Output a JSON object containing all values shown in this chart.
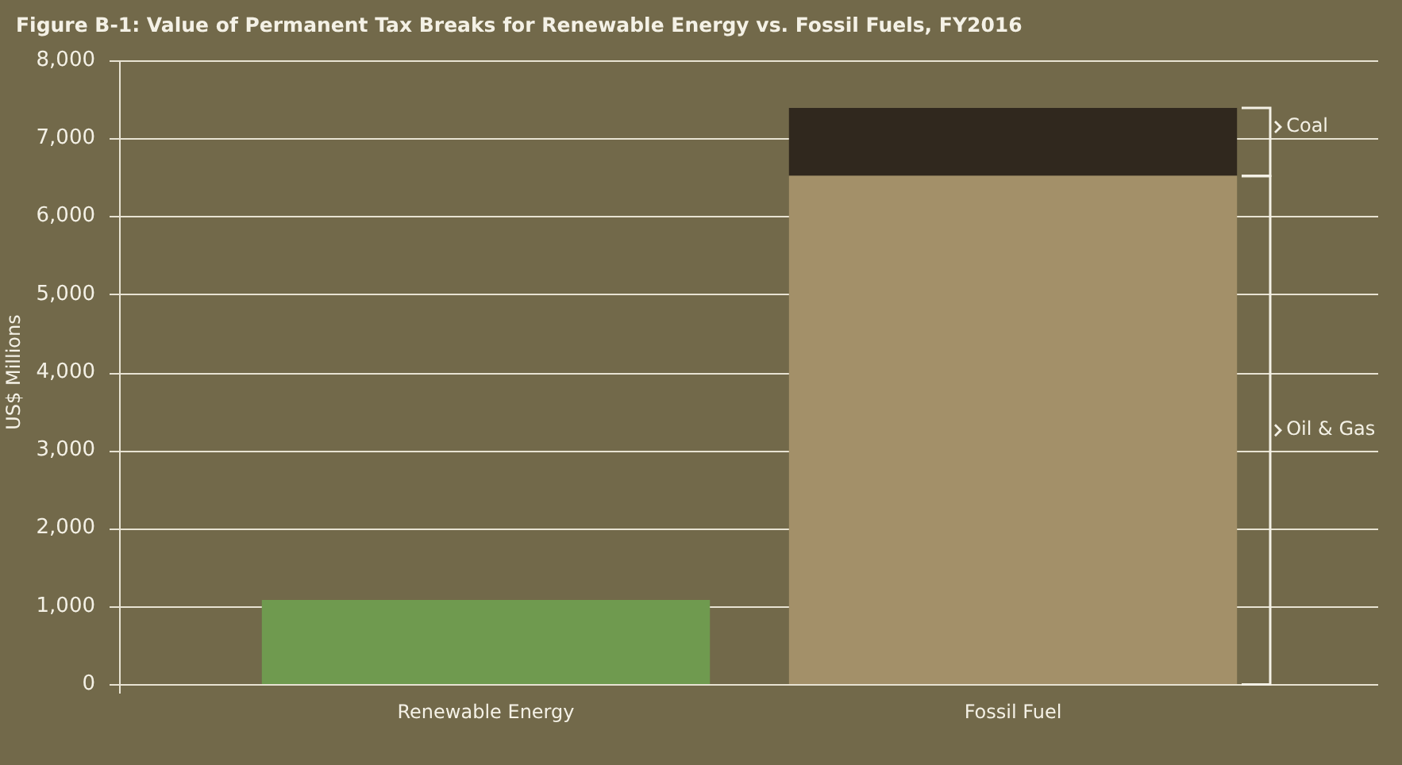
{
  "chart_data": {
    "type": "bar",
    "title": "Figure B-1: Value of Permanent Tax Breaks for Renewable Energy vs. Fossil Fuels, FY2016",
    "ylabel": "US$ Millions",
    "categories": [
      "Renewable Energy",
      "Fossil Fuel"
    ],
    "stacked": true,
    "grid": "y",
    "ylim": [
      0,
      8000
    ],
    "yticks": [
      0,
      {
        "value": 1000,
        "label": "1,000"
      },
      {
        "value": 2000,
        "label": "2,000"
      },
      {
        "value": 3000,
        "label": "3,000"
      },
      {
        "value": 4000,
        "label": "4,000"
      },
      {
        "value": 5000,
        "label": "5,000"
      },
      {
        "value": 6000,
        "label": "6,000"
      },
      {
        "value": 7000,
        "label": "7,000"
      },
      {
        "value": 8000,
        "label": "8,000"
      }
    ],
    "series": [
      {
        "color": "#6f9a4f",
        "values": [
          1080,
          null
        ]
      },
      {
        "name": "Oil & Gas",
        "color": "#a39069",
        "values": [
          null,
          6520
        ]
      },
      {
        "name": "Coal",
        "color": "#30281e",
        "values": [
          null,
          870
        ]
      }
    ]
  }
}
